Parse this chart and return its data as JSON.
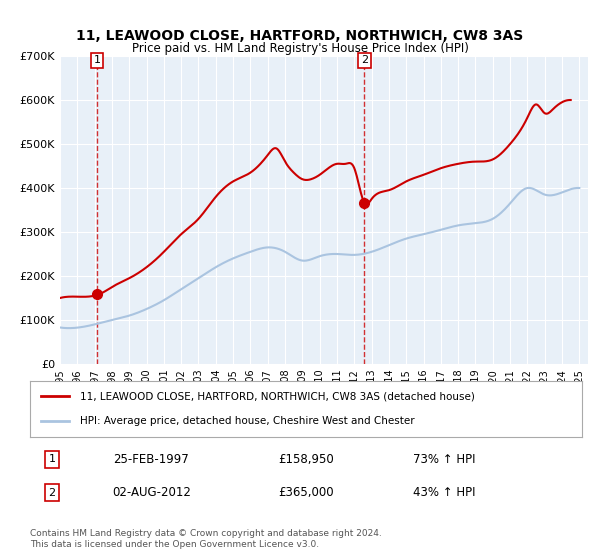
{
  "title": "11, LEAWOOD CLOSE, HARTFORD, NORTHWICH, CW8 3AS",
  "subtitle": "Price paid vs. HM Land Registry's House Price Index (HPI)",
  "bg_color": "#e8f0f8",
  "plot_bg_color": "#e8f0f8",
  "legend_line1": "11, LEAWOOD CLOSE, HARTFORD, NORTHWICH, CW8 3AS (detached house)",
  "legend_line2": "HPI: Average price, detached house, Cheshire West and Chester",
  "transaction1_date": "25-FEB-1997",
  "transaction1_price": 158950,
  "transaction1_hpi": "73% ↑ HPI",
  "transaction2_date": "02-AUG-2012",
  "transaction2_price": 365000,
  "transaction2_hpi": "43% ↑ HPI",
  "ylabel_values": [
    "£0",
    "£100K",
    "£200K",
    "£300K",
    "£400K",
    "£500K",
    "£600K",
    "£700K"
  ],
  "ylabel_numeric": [
    0,
    100000,
    200000,
    300000,
    400000,
    500000,
    600000,
    700000
  ],
  "ylim": [
    0,
    700000
  ],
  "xlim_start": 1995.0,
  "xlim_end": 2025.5,
  "footer": "Contains HM Land Registry data © Crown copyright and database right 2024.\nThis data is licensed under the Open Government Licence v3.0.",
  "red_color": "#cc0000",
  "blue_color": "#aac4e0",
  "marker_color": "#cc0000",
  "dashed_line_color": "#cc0000"
}
